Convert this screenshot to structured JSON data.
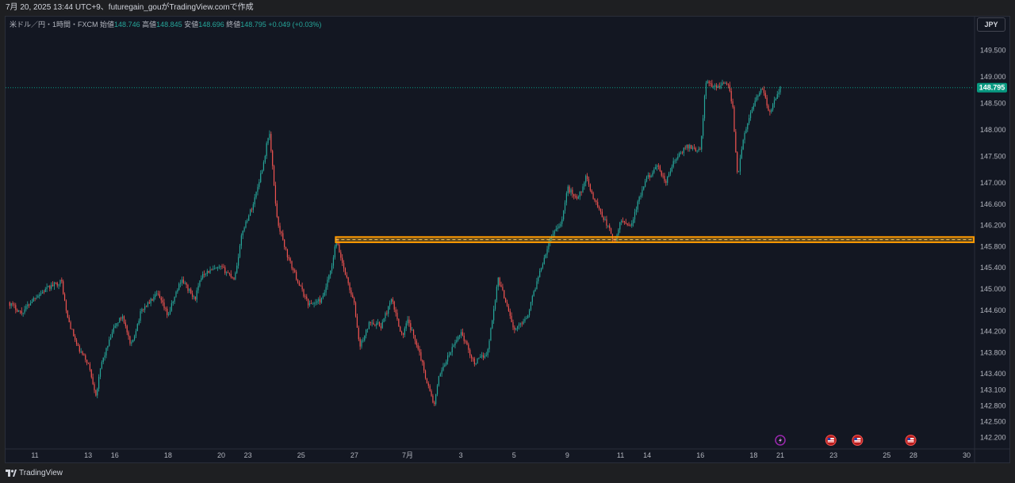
{
  "header": {
    "caption": "7月 20, 2025 13:44 UTC+9、futuregain_gouがTradingView.comで作成"
  },
  "legend": {
    "symbol": "米ドル／円・1時間・FXCM",
    "open_label": "始値",
    "open": "148.746",
    "high_label": "高値",
    "high": "148.845",
    "low_label": "安値",
    "low": "148.696",
    "close_label": "終値",
    "close": "148.795",
    "change": "+0.049 (+0.03%)"
  },
  "price_scale": {
    "currency": "JPY",
    "last_price_tag": "148.795"
  },
  "footer": {
    "brand": "TradingView"
  },
  "colors": {
    "background": "#131722",
    "up_candle": "#26a69a",
    "down_candle": "#ef5350",
    "zone_fill": "#e8a317",
    "zone_border": "#ff9800",
    "last_price": "#089981",
    "grid": "#1f2431",
    "axis_text": "#b2b5be"
  },
  "chart_data": {
    "type": "candlestick",
    "title": "",
    "xlabel": "",
    "ylabel": "",
    "y_range": [
      142.0,
      149.85
    ],
    "y_ticks": [
      149.5,
      149.0,
      148.5,
      148.0,
      147.5,
      147.0,
      146.6,
      146.2,
      145.8,
      145.4,
      145.0,
      144.6,
      144.2,
      143.8,
      143.4,
      143.1,
      142.8,
      142.5,
      142.2
    ],
    "y_tick_labels": [
      "149.500",
      "149.000",
      "148.500",
      "148.000",
      "147.500",
      "147.000",
      "146.600",
      "146.200",
      "145.800",
      "145.400",
      "145.000",
      "144.600",
      "144.200",
      "143.800",
      "143.400",
      "143.100",
      "142.800",
      "142.500",
      "142.200"
    ],
    "x_ticks": [
      {
        "label": "11",
        "t": 1.0
      },
      {
        "label": "13",
        "t": 3.0
      },
      {
        "label": "16",
        "t": 4.0
      },
      {
        "label": "18",
        "t": 6.0
      },
      {
        "label": "20",
        "t": 8.0
      },
      {
        "label": "23",
        "t": 9.0
      },
      {
        "label": "25",
        "t": 11.0
      },
      {
        "label": "27",
        "t": 13.0
      },
      {
        "label": "7月",
        "t": 15.0
      },
      {
        "label": "3",
        "t": 17.0
      },
      {
        "label": "5",
        "t": 19.0
      },
      {
        "label": "9",
        "t": 21.0
      },
      {
        "label": "11",
        "t": 23.0
      },
      {
        "label": "14",
        "t": 24.0
      },
      {
        "label": "16",
        "t": 26.0
      },
      {
        "label": "18",
        "t": 28.0
      },
      {
        "label": "21",
        "t": 29.0
      },
      {
        "label": "23",
        "t": 31.0
      },
      {
        "label": "25",
        "t": 33.0
      },
      {
        "label": "28",
        "t": 34.0
      },
      {
        "label": "30",
        "t": 36.0
      }
    ],
    "price_path": [
      {
        "t": 0.0,
        "price": 144.75
      },
      {
        "t": 0.5,
        "price": 144.55
      },
      {
        "t": 1.0,
        "price": 144.85
      },
      {
        "t": 1.6,
        "price": 145.05
      },
      {
        "t": 2.0,
        "price": 145.15
      },
      {
        "t": 2.2,
        "price": 144.5
      },
      {
        "t": 2.6,
        "price": 143.9
      },
      {
        "t": 3.0,
        "price": 143.6
      },
      {
        "t": 3.3,
        "price": 143.0
      },
      {
        "t": 3.5,
        "price": 143.6
      },
      {
        "t": 4.0,
        "price": 144.3
      },
      {
        "t": 4.3,
        "price": 144.5
      },
      {
        "t": 4.6,
        "price": 143.9
      },
      {
        "t": 5.0,
        "price": 144.6
      },
      {
        "t": 5.6,
        "price": 144.9
      },
      {
        "t": 6.0,
        "price": 144.5
      },
      {
        "t": 6.5,
        "price": 145.2
      },
      {
        "t": 7.0,
        "price": 144.8
      },
      {
        "t": 7.3,
        "price": 145.3
      },
      {
        "t": 8.0,
        "price": 145.4
      },
      {
        "t": 8.5,
        "price": 145.2
      },
      {
        "t": 8.8,
        "price": 146.1
      },
      {
        "t": 9.2,
        "price": 146.6
      },
      {
        "t": 9.6,
        "price": 147.4
      },
      {
        "t": 9.8,
        "price": 148.0
      },
      {
        "t": 10.1,
        "price": 146.3
      },
      {
        "t": 10.5,
        "price": 145.6
      },
      {
        "t": 11.0,
        "price": 145.0
      },
      {
        "t": 11.3,
        "price": 144.7
      },
      {
        "t": 11.8,
        "price": 144.8
      },
      {
        "t": 12.2,
        "price": 145.5
      },
      {
        "t": 12.3,
        "price": 145.95
      },
      {
        "t": 12.6,
        "price": 145.4
      },
      {
        "t": 13.0,
        "price": 144.7
      },
      {
        "t": 13.2,
        "price": 143.9
      },
      {
        "t": 13.6,
        "price": 144.4
      },
      {
        "t": 14.0,
        "price": 144.3
      },
      {
        "t": 14.4,
        "price": 144.8
      },
      {
        "t": 14.8,
        "price": 144.1
      },
      {
        "t": 15.0,
        "price": 144.4
      },
      {
        "t": 15.4,
        "price": 143.9
      },
      {
        "t": 15.7,
        "price": 143.3
      },
      {
        "t": 16.0,
        "price": 142.8
      },
      {
        "t": 16.2,
        "price": 143.4
      },
      {
        "t": 16.6,
        "price": 143.8
      },
      {
        "t": 17.0,
        "price": 144.2
      },
      {
        "t": 17.5,
        "price": 143.6
      },
      {
        "t": 18.0,
        "price": 143.8
      },
      {
        "t": 18.4,
        "price": 145.2
      },
      {
        "t": 18.8,
        "price": 144.6
      },
      {
        "t": 19.0,
        "price": 144.2
      },
      {
        "t": 19.5,
        "price": 144.5
      },
      {
        "t": 20.0,
        "price": 145.4
      },
      {
        "t": 20.4,
        "price": 146.0
      },
      {
        "t": 20.8,
        "price": 146.3
      },
      {
        "t": 21.0,
        "price": 146.9
      },
      {
        "t": 21.4,
        "price": 146.7
      },
      {
        "t": 21.7,
        "price": 147.1
      },
      {
        "t": 22.0,
        "price": 146.7
      },
      {
        "t": 22.3,
        "price": 146.4
      },
      {
        "t": 22.6,
        "price": 146.1
      },
      {
        "t": 22.8,
        "price": 145.85
      },
      {
        "t": 23.0,
        "price": 146.3
      },
      {
        "t": 23.4,
        "price": 146.2
      },
      {
        "t": 23.7,
        "price": 146.7
      },
      {
        "t": 24.0,
        "price": 147.1
      },
      {
        "t": 24.4,
        "price": 147.3
      },
      {
        "t": 24.7,
        "price": 147.0
      },
      {
        "t": 25.0,
        "price": 147.4
      },
      {
        "t": 25.5,
        "price": 147.7
      },
      {
        "t": 26.0,
        "price": 147.6
      },
      {
        "t": 26.2,
        "price": 148.9
      },
      {
        "t": 26.6,
        "price": 148.8
      },
      {
        "t": 27.0,
        "price": 148.9
      },
      {
        "t": 27.2,
        "price": 148.5
      },
      {
        "t": 27.4,
        "price": 147.1
      },
      {
        "t": 27.6,
        "price": 147.8
      },
      {
        "t": 28.0,
        "price": 148.5
      },
      {
        "t": 28.3,
        "price": 148.8
      },
      {
        "t": 28.6,
        "price": 148.3
      },
      {
        "t": 29.0,
        "price": 148.795
      }
    ],
    "horizontal_zone": {
      "from_t": 12.3,
      "to_t": 36.6,
      "price_low": 145.88,
      "price_high": 145.98
    },
    "last_price": 148.795,
    "event_markers": [
      {
        "t": 29.0,
        "type": "dividend-flash"
      },
      {
        "t": 30.9,
        "type": "us-flag"
      },
      {
        "t": 31.9,
        "type": "us-flag"
      },
      {
        "t": 33.9,
        "type": "us-flag"
      }
    ]
  }
}
